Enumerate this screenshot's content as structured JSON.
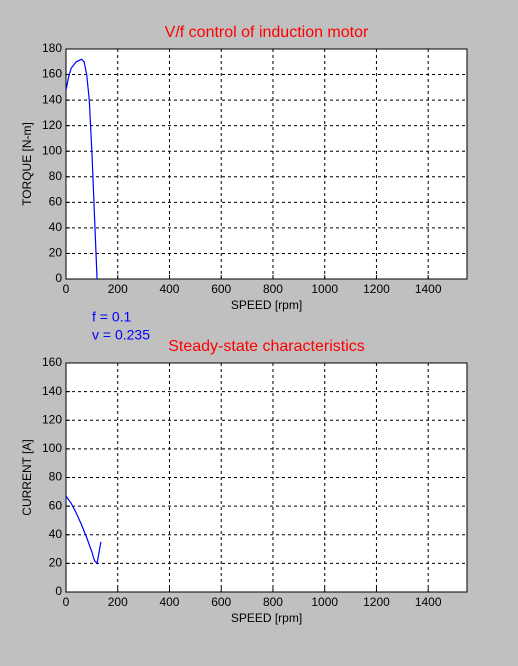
{
  "chart_data": [
    {
      "type": "line",
      "title": "V/f control of induction motor",
      "xlabel": "SPEED [rpm]",
      "ylabel": "TORQUE [N-m]",
      "x": [
        0,
        10,
        20,
        40,
        60,
        70,
        80,
        90,
        100,
        110,
        118,
        120
      ],
      "values": [
        148,
        158,
        165,
        170,
        172,
        170,
        160,
        140,
        100,
        50,
        10,
        0
      ],
      "color": "#0000ff",
      "xlim": [
        0,
        1550
      ],
      "xticks": [
        0,
        200,
        400,
        600,
        800,
        1000,
        1200,
        1400
      ],
      "ylim": [
        0,
        180
      ],
      "yticks": [
        0,
        20,
        40,
        60,
        80,
        100,
        120,
        140,
        160,
        180
      ],
      "grid": true,
      "annotations": [
        "f = 0.1",
        "v = 0.235"
      ]
    },
    {
      "type": "line",
      "title": "Steady-state characteristics",
      "xlabel": "SPEED [rpm]",
      "ylabel": "CURRENT [A]",
      "x": [
        0,
        20,
        40,
        60,
        80,
        100,
        110,
        120,
        125,
        130,
        135
      ],
      "values": [
        67,
        62,
        55,
        47,
        38,
        28,
        22,
        20,
        25,
        30,
        35
      ],
      "color": "#0000ff",
      "xlim": [
        0,
        1550
      ],
      "xticks": [
        0,
        200,
        400,
        600,
        800,
        1000,
        1200,
        1400
      ],
      "ylim": [
        0,
        160
      ],
      "yticks": [
        0,
        20,
        40,
        60,
        80,
        100,
        120,
        140,
        160
      ],
      "grid": true
    }
  ]
}
